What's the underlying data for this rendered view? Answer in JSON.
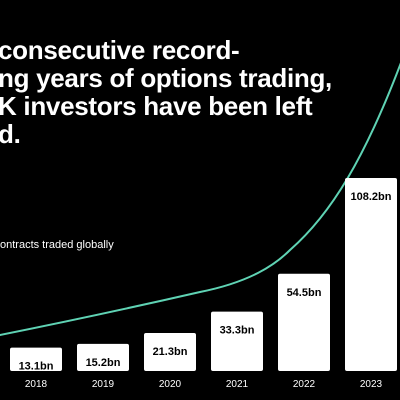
{
  "headline": "consecutive record-\nng years of options trading,\nK investors have been left\nd.",
  "subtitle": "ontracts traded globally",
  "colors": {
    "background": "#000000",
    "bar": "#ffffff",
    "bar_label": "#000000",
    "line": "#5fd3b4",
    "text": "#ffffff"
  },
  "chart_data": {
    "type": "bar",
    "title": "",
    "xlabel": "",
    "ylabel": "",
    "categories": [
      "2018",
      "2019",
      "2020",
      "2021",
      "2022",
      "2023"
    ],
    "values": [
      13.1,
      15.2,
      21.3,
      33.3,
      54.5,
      108.2
    ],
    "value_labels": [
      "13.1bn",
      "15.2bn",
      "21.3bn",
      "33.3bn",
      "54.5bn",
      "108.2bn"
    ],
    "ylim": [
      0,
      110
    ],
    "grid": false,
    "legend": "none",
    "overlay_line": true
  }
}
